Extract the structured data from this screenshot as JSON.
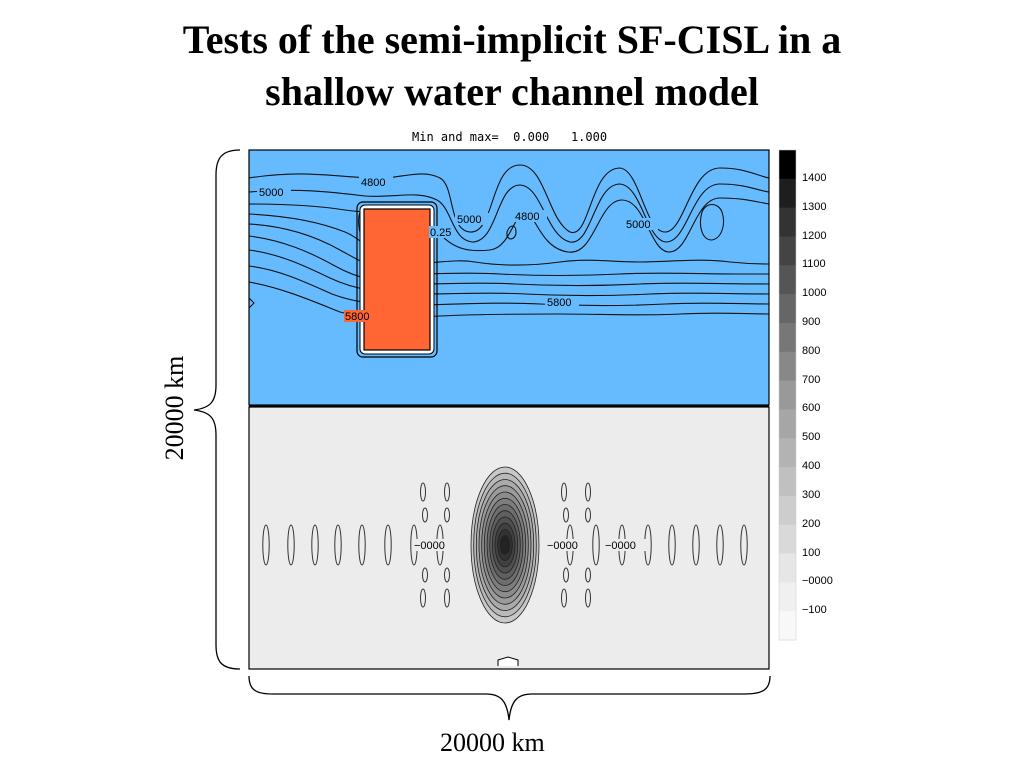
{
  "slide": {
    "title_line1": "Tests of the semi-implicit SF-CISL in a",
    "title_line2": "shallow water channel model"
  },
  "plot": {
    "minmax_text": "Min and max=  0.000   1.000",
    "top_panel_color": "#66bbff",
    "tracer_block_color": "#ff6633",
    "bottom_panel_color": "#ececec",
    "top_contour_labels": [
      "5000",
      "4800",
      "5000",
      "4800",
      "5000",
      "0.25",
      "5800",
      "5800"
    ],
    "bottom_contour_labels": [
      "−0000",
      "−0000",
      "−0000"
    ],
    "colorbar_labels": [
      "1400",
      "1300",
      "1200",
      "1100",
      "1000",
      "900",
      "800",
      "700",
      "600",
      "500",
      "400",
      "300",
      "200",
      "100",
      "−0000",
      "−100"
    ],
    "colorbar_colors": [
      "#000000",
      "#1e1e1e",
      "#333333",
      "#444444",
      "#555555",
      "#666666",
      "#777777",
      "#888888",
      "#999999",
      "#a6a6a6",
      "#b3b3b3",
      "#c0c0c0",
      "#cdcdcd",
      "#d9d9d9",
      "#e6e6e6",
      "#f0f0f0",
      "#f8f8f8"
    ]
  },
  "scale": {
    "horizontal": "20000 km",
    "vertical": "20000 km"
  }
}
